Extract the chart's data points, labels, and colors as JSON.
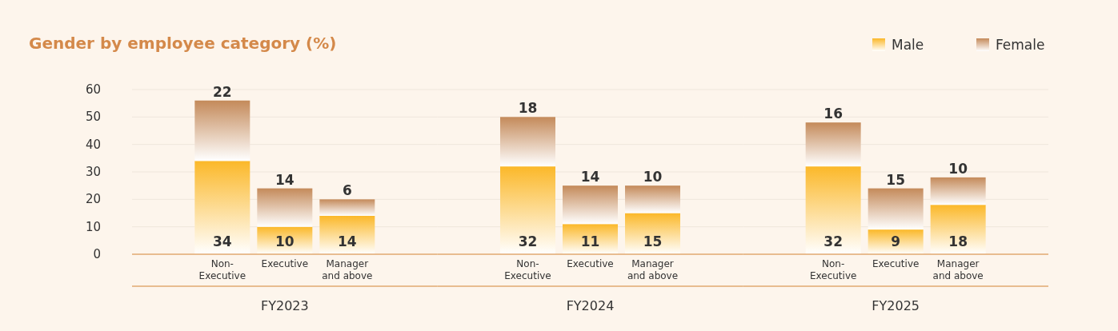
{
  "chart_data": [
    {
      "type": "bar",
      "title": "Gender by employee category (%)",
      "xlabel": "FY2023",
      "stacked": true,
      "data_labels": true,
      "grid": "y",
      "categories": [
        "Non-Executive",
        "Executive",
        "Manager and above"
      ],
      "series": [
        {
          "color": "#fbb829",
          "values": [
            34,
            10,
            14
          ]
        },
        {
          "color": "#c48a5a",
          "values": [
            22,
            14,
            6
          ]
        }
      ],
      "ylim": [
        0,
        60
      ],
      "yticks": [
        0,
        10,
        20,
        30,
        40,
        50,
        60
      ]
    },
    {
      "type": "bar",
      "xlabel": "FY2024",
      "stacked": true,
      "data_labels": true,
      "grid": "y",
      "tick_labels": "x",
      "categories": [
        "Non-Executive",
        "Executive",
        "Manager and above"
      ],
      "series": [
        {
          "color": "#fbb829",
          "values": [
            32,
            11,
            15
          ]
        },
        {
          "color": "#c48a5a",
          "values": [
            18,
            14,
            10
          ]
        }
      ],
      "ylim": [
        0,
        60
      ],
      "yticks": [
        0,
        10,
        20,
        30,
        40,
        50,
        60
      ]
    },
    {
      "type": "bar",
      "xlabel": "FY2025",
      "stacked": true,
      "data_labels": true,
      "grid": "y",
      "tick_labels": "x",
      "legend": "top right",
      "categories": [
        "Non-Executive",
        "Executive",
        "Manager and above"
      ],
      "series": [
        {
          "name": "Male",
          "color": "#fbb829",
          "values": [
            32,
            9,
            18
          ]
        },
        {
          "name": "Female",
          "color": "#c48a5a",
          "values": [
            16,
            15,
            10
          ]
        }
      ],
      "ylim": [
        0,
        60
      ],
      "yticks": [
        0,
        10,
        20,
        30,
        40,
        50,
        60
      ]
    }
  ]
}
